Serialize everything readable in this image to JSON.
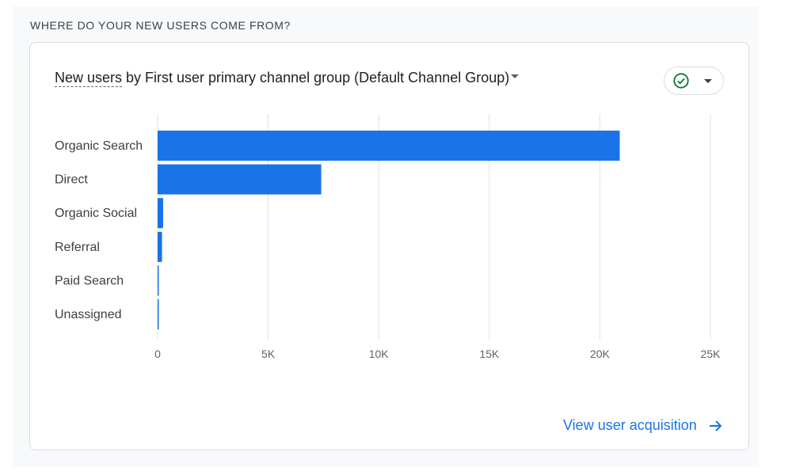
{
  "section": {
    "heading": "WHERE DO YOUR NEW USERS COME FROM?"
  },
  "card": {
    "title_metric": "New users",
    "title_rest": " by First user primary channel group (Default Channel Group)",
    "status_icon": "check-circle-icon",
    "link_label": "View user acquisition",
    "link_icon": "arrow-right-icon"
  },
  "colors": {
    "bar": "#1a73e8",
    "grid": "#e0e0e0",
    "check": "#137333",
    "link": "#1a73e8"
  },
  "chart_data": {
    "type": "bar",
    "orientation": "horizontal",
    "categories": [
      "Organic Search",
      "Direct",
      "Organic Social",
      "Referral",
      "Paid Search",
      "Unassigned"
    ],
    "values": [
      20900,
      7400,
      250,
      200,
      40,
      30
    ],
    "xlim": [
      0,
      25000
    ],
    "xticks": [
      0,
      5000,
      10000,
      15000,
      20000,
      25000
    ],
    "xtick_labels": [
      "0",
      "5K",
      "10K",
      "15K",
      "20K",
      "25K"
    ],
    "grid": true,
    "legend": "none"
  }
}
